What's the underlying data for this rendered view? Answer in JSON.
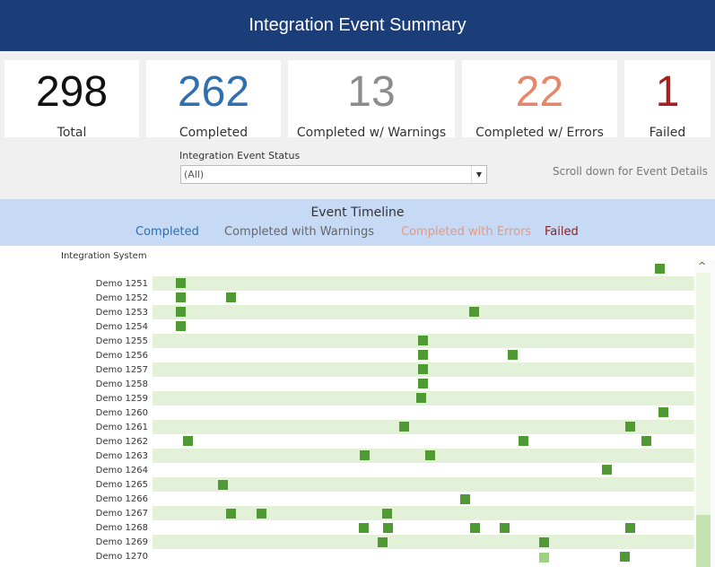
{
  "header": {
    "title": "Integration Event Summary"
  },
  "kpis": [
    {
      "value": "298",
      "label": "Total",
      "color": "#111111"
    },
    {
      "value": "262",
      "label": "Completed",
      "color": "#2f6faf"
    },
    {
      "value": "13",
      "label": "Completed w/ Warnings",
      "color": "#8c8c8c"
    },
    {
      "value": "22",
      "label": "Completed w/ Errors",
      "color": "#e8866a"
    },
    {
      "value": "1",
      "label": "Failed",
      "color": "#a51f1f"
    }
  ],
  "filter": {
    "label": "Integration Event Status",
    "value": "(All)"
  },
  "scroll_note": "Scroll down for Event Details",
  "timeline": {
    "title": "Event Timeline",
    "legend": [
      {
        "label": "Completed",
        "color": "#2f6faf"
      },
      {
        "label": "Completed with Warnings",
        "color": "#666666"
      },
      {
        "label": "Completed with Errors",
        "color": "#e09b85"
      },
      {
        "label": "Failed",
        "color": "#8b1f1f"
      }
    ],
    "axis_title": "Integration System",
    "rows": [
      "Demo 1251",
      "Demo 1252",
      "Demo 1253",
      "Demo 1254",
      "Demo 1255",
      "Demo 1256",
      "Demo 1257",
      "Demo 1258",
      "Demo 1259",
      "Demo 1260",
      "Demo 1261",
      "Demo 1262",
      "Demo 1263",
      "Demo 1264",
      "Demo 1265",
      "Demo 1266",
      "Demo 1267",
      "Demo 1268",
      "Demo 1269",
      "Demo 1270"
    ]
  },
  "colors": {
    "header_bg": "#1b3e78",
    "marker": "#4f9a34",
    "marker_light": "#9dd37e",
    "stripe": "#e3f1d9"
  }
}
